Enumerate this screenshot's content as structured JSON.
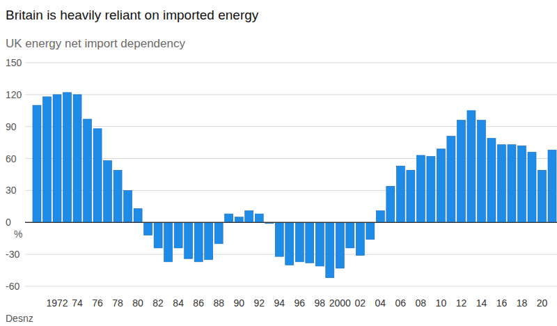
{
  "chart_data": {
    "type": "bar",
    "title": "Britain is heavily reliant on imported energy",
    "subtitle": "UK energy net import dependency",
    "y_label": "%",
    "source": "Desnz",
    "categories": [
      null,
      null,
      "1972",
      null,
      "74",
      null,
      "76",
      null,
      "78",
      null,
      "80",
      null,
      "82",
      null,
      "84",
      null,
      "86",
      null,
      "88",
      null,
      "90",
      null,
      "92",
      null,
      "94",
      null,
      "96",
      null,
      "98",
      null,
      "2000",
      null,
      "02",
      null,
      "04",
      null,
      "06",
      null,
      "08",
      null,
      "10",
      null,
      "12",
      null,
      "14",
      null,
      "16",
      null,
      "18",
      null,
      "20",
      null
    ],
    "values": [
      110,
      118,
      120,
      122,
      120,
      97,
      88,
      58,
      49,
      30,
      13,
      -12,
      -24,
      -37,
      -24,
      -34,
      -37,
      -35,
      -20,
      8,
      5,
      11,
      8,
      -1,
      -32,
      -40,
      -37,
      -38,
      -41,
      -52,
      -43,
      -24,
      -31,
      -16,
      11,
      34,
      53,
      49,
      63,
      62,
      69,
      81,
      96,
      105,
      96,
      79,
      73,
      73,
      72,
      66,
      49,
      68
    ],
    "color": "#1e8ce6",
    "ylim": [
      -60,
      150
    ],
    "yticks": [
      -60,
      -30,
      0,
      30,
      60,
      90,
      120,
      150
    ],
    "grid": true
  }
}
